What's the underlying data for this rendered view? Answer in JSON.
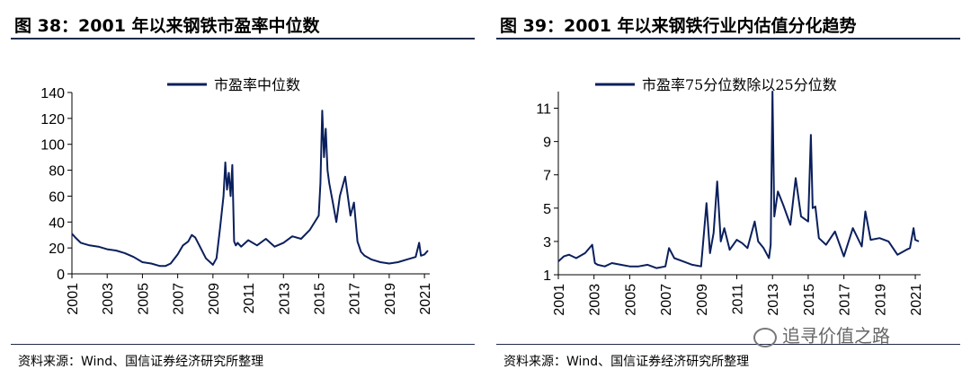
{
  "colors": {
    "line": "#0a1f5c",
    "rule": "#1f2b4d"
  },
  "left": {
    "title": "图 38：2001 年以来钢铁市盈率中位数",
    "source": "资料来源：Wind、国信证券经济研究所整理",
    "chart_data": {
      "type": "line",
      "legend": "市盈率中位数",
      "legend_position": "top-center",
      "ylim": [
        0,
        140
      ],
      "yticks": [
        0,
        20,
        40,
        60,
        80,
        100,
        120,
        140
      ],
      "xlim": [
        2001,
        2021.3
      ],
      "xticks": [
        "2001",
        "2003",
        "2005",
        "2007",
        "2009",
        "2011",
        "2013",
        "2015",
        "2017",
        "2019",
        "2021"
      ],
      "grid": false,
      "series": [
        {
          "x": [
            2001,
            2001.2,
            2001.5,
            2002,
            2002.5,
            2003,
            2003.5,
            2004,
            2004.5,
            2005,
            2005.5,
            2006,
            2006.3,
            2006.6,
            2007,
            2007.3,
            2007.6,
            2007.8,
            2008,
            2008.3,
            2008.6,
            2009,
            2009.2,
            2009.4,
            2009.6,
            2009.7,
            2009.8,
            2009.9,
            2010,
            2010.1,
            2010.2,
            2010.3,
            2010.4,
            2010.6,
            2011,
            2011.5,
            2012,
            2012.5,
            2013,
            2013.5,
            2014,
            2014.5,
            2015,
            2015.1,
            2015.2,
            2015.3,
            2015.4,
            2015.5,
            2015.6,
            2015.8,
            2016,
            2016.2,
            2016.5,
            2016.8,
            2017,
            2017.2,
            2017.4,
            2017.6,
            2018,
            2018.5,
            2019,
            2019.5,
            2020,
            2020.5,
            2020.7,
            2020.8,
            2021,
            2021.2
          ],
          "values": [
            31,
            28,
            24,
            22,
            21,
            19,
            18,
            16,
            13,
            9,
            8,
            6,
            6,
            8,
            15,
            22,
            25,
            30,
            28,
            20,
            12,
            7,
            12,
            35,
            60,
            86,
            65,
            78,
            60,
            84,
            25,
            22,
            24,
            21,
            26,
            22,
            27,
            21,
            24,
            29,
            27,
            34,
            45,
            70,
            126,
            90,
            112,
            80,
            70,
            55,
            40,
            60,
            75,
            45,
            55,
            25,
            17,
            14,
            11,
            9,
            8,
            9,
            11,
            13,
            24,
            14,
            15,
            18
          ]
        }
      ]
    }
  },
  "right": {
    "title": "图 39：2001 年以来钢铁行业内估值分化趋势",
    "source": "资料来源：Wind、国信证券经济研究所整理",
    "watermark": "追寻价值之路",
    "chart_data": {
      "type": "line",
      "legend": "市盈率75分位数除以25分位数",
      "legend_position": "top-center",
      "ylim": [
        1,
        12
      ],
      "yticks": [
        1,
        3,
        5,
        7,
        9,
        11
      ],
      "xlim": [
        2001,
        2021.3
      ],
      "xticks": [
        "2001",
        "2003",
        "2005",
        "2007",
        "2009",
        "2011",
        "2013",
        "2015",
        "2017",
        "2019",
        "2021"
      ],
      "grid": false,
      "series": [
        {
          "x": [
            2001,
            2001.3,
            2001.6,
            2002,
            2002.5,
            2002.9,
            2003.05,
            2003.2,
            2003.6,
            2004,
            2004.5,
            2005,
            2005.5,
            2006,
            2006.5,
            2007,
            2007.2,
            2007.5,
            2008,
            2008.5,
            2009,
            2009.3,
            2009.5,
            2009.7,
            2009.9,
            2010.1,
            2010.3,
            2010.6,
            2011,
            2011.3,
            2011.6,
            2012,
            2012.2,
            2012.5,
            2012.8,
            2012.9,
            2013.0,
            2013.1,
            2013.3,
            2013.6,
            2014,
            2014.3,
            2014.6,
            2015,
            2015.15,
            2015.25,
            2015.4,
            2015.6,
            2016,
            2016.5,
            2017,
            2017.5,
            2018,
            2018.2,
            2018.5,
            2019,
            2019.5,
            2020,
            2020.5,
            2020.7,
            2020.9,
            2021,
            2021.2
          ],
          "values": [
            1.8,
            2.1,
            2.2,
            2.0,
            2.3,
            2.8,
            1.7,
            1.6,
            1.5,
            1.7,
            1.6,
            1.5,
            1.5,
            1.6,
            1.4,
            1.5,
            2.6,
            2.0,
            1.8,
            1.6,
            1.5,
            5.3,
            2.3,
            3.5,
            6.6,
            3.0,
            3.8,
            2.5,
            3.1,
            2.9,
            2.6,
            4.2,
            3.0,
            2.6,
            2.0,
            2.8,
            12.0,
            4.5,
            6.0,
            5.2,
            4.0,
            6.8,
            4.5,
            4.2,
            9.4,
            5.0,
            5.1,
            3.2,
            2.8,
            3.6,
            2.1,
            3.8,
            2.7,
            4.8,
            3.1,
            3.2,
            3.0,
            2.2,
            2.5,
            2.6,
            3.8,
            3.1,
            3.0
          ]
        }
      ]
    }
  }
}
